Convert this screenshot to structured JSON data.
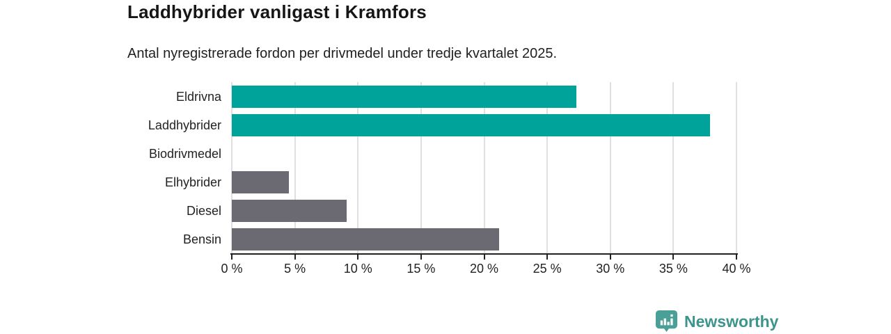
{
  "header": {
    "title": "Laddhybrider vanligast i Kramfors",
    "subtitle": "Antal nyregistrerade fordon per drivmedel under tredje kvartalet 2025."
  },
  "chart_data": {
    "type": "bar",
    "orientation": "horizontal",
    "title": "Laddhybrider vanligast i Kramfors",
    "subtitle": "Antal nyregistrerade fordon per drivmedel under tredje kvartalet 2025.",
    "categories": [
      "Eldrivna",
      "Laddhybrider",
      "Biodrivmedel",
      "Elhybrider",
      "Diesel",
      "Bensin"
    ],
    "values": [
      27.3,
      37.9,
      0,
      4.5,
      9.1,
      21.2
    ],
    "unit": "%",
    "xlabel": "",
    "ylabel": "",
    "xlim": [
      0,
      40
    ],
    "xticks": [
      0,
      5,
      10,
      15,
      20,
      25,
      30,
      35,
      40
    ],
    "xtick_suffix": " %",
    "grid": true,
    "legend": false,
    "bar_colors": [
      "#00a39a",
      "#00a39a",
      "#00a39a",
      "#6b6972",
      "#6b6972",
      "#6b6972"
    ]
  },
  "colors": {
    "bar_teal": "#00a39a",
    "bar_gray": "#6b6972",
    "axis": "#222222",
    "gridline": "#e0e0e0",
    "logo_text": "#3d948c",
    "logo_icon": "#4aa096"
  },
  "footer": {
    "brand": "Newsworthy"
  }
}
